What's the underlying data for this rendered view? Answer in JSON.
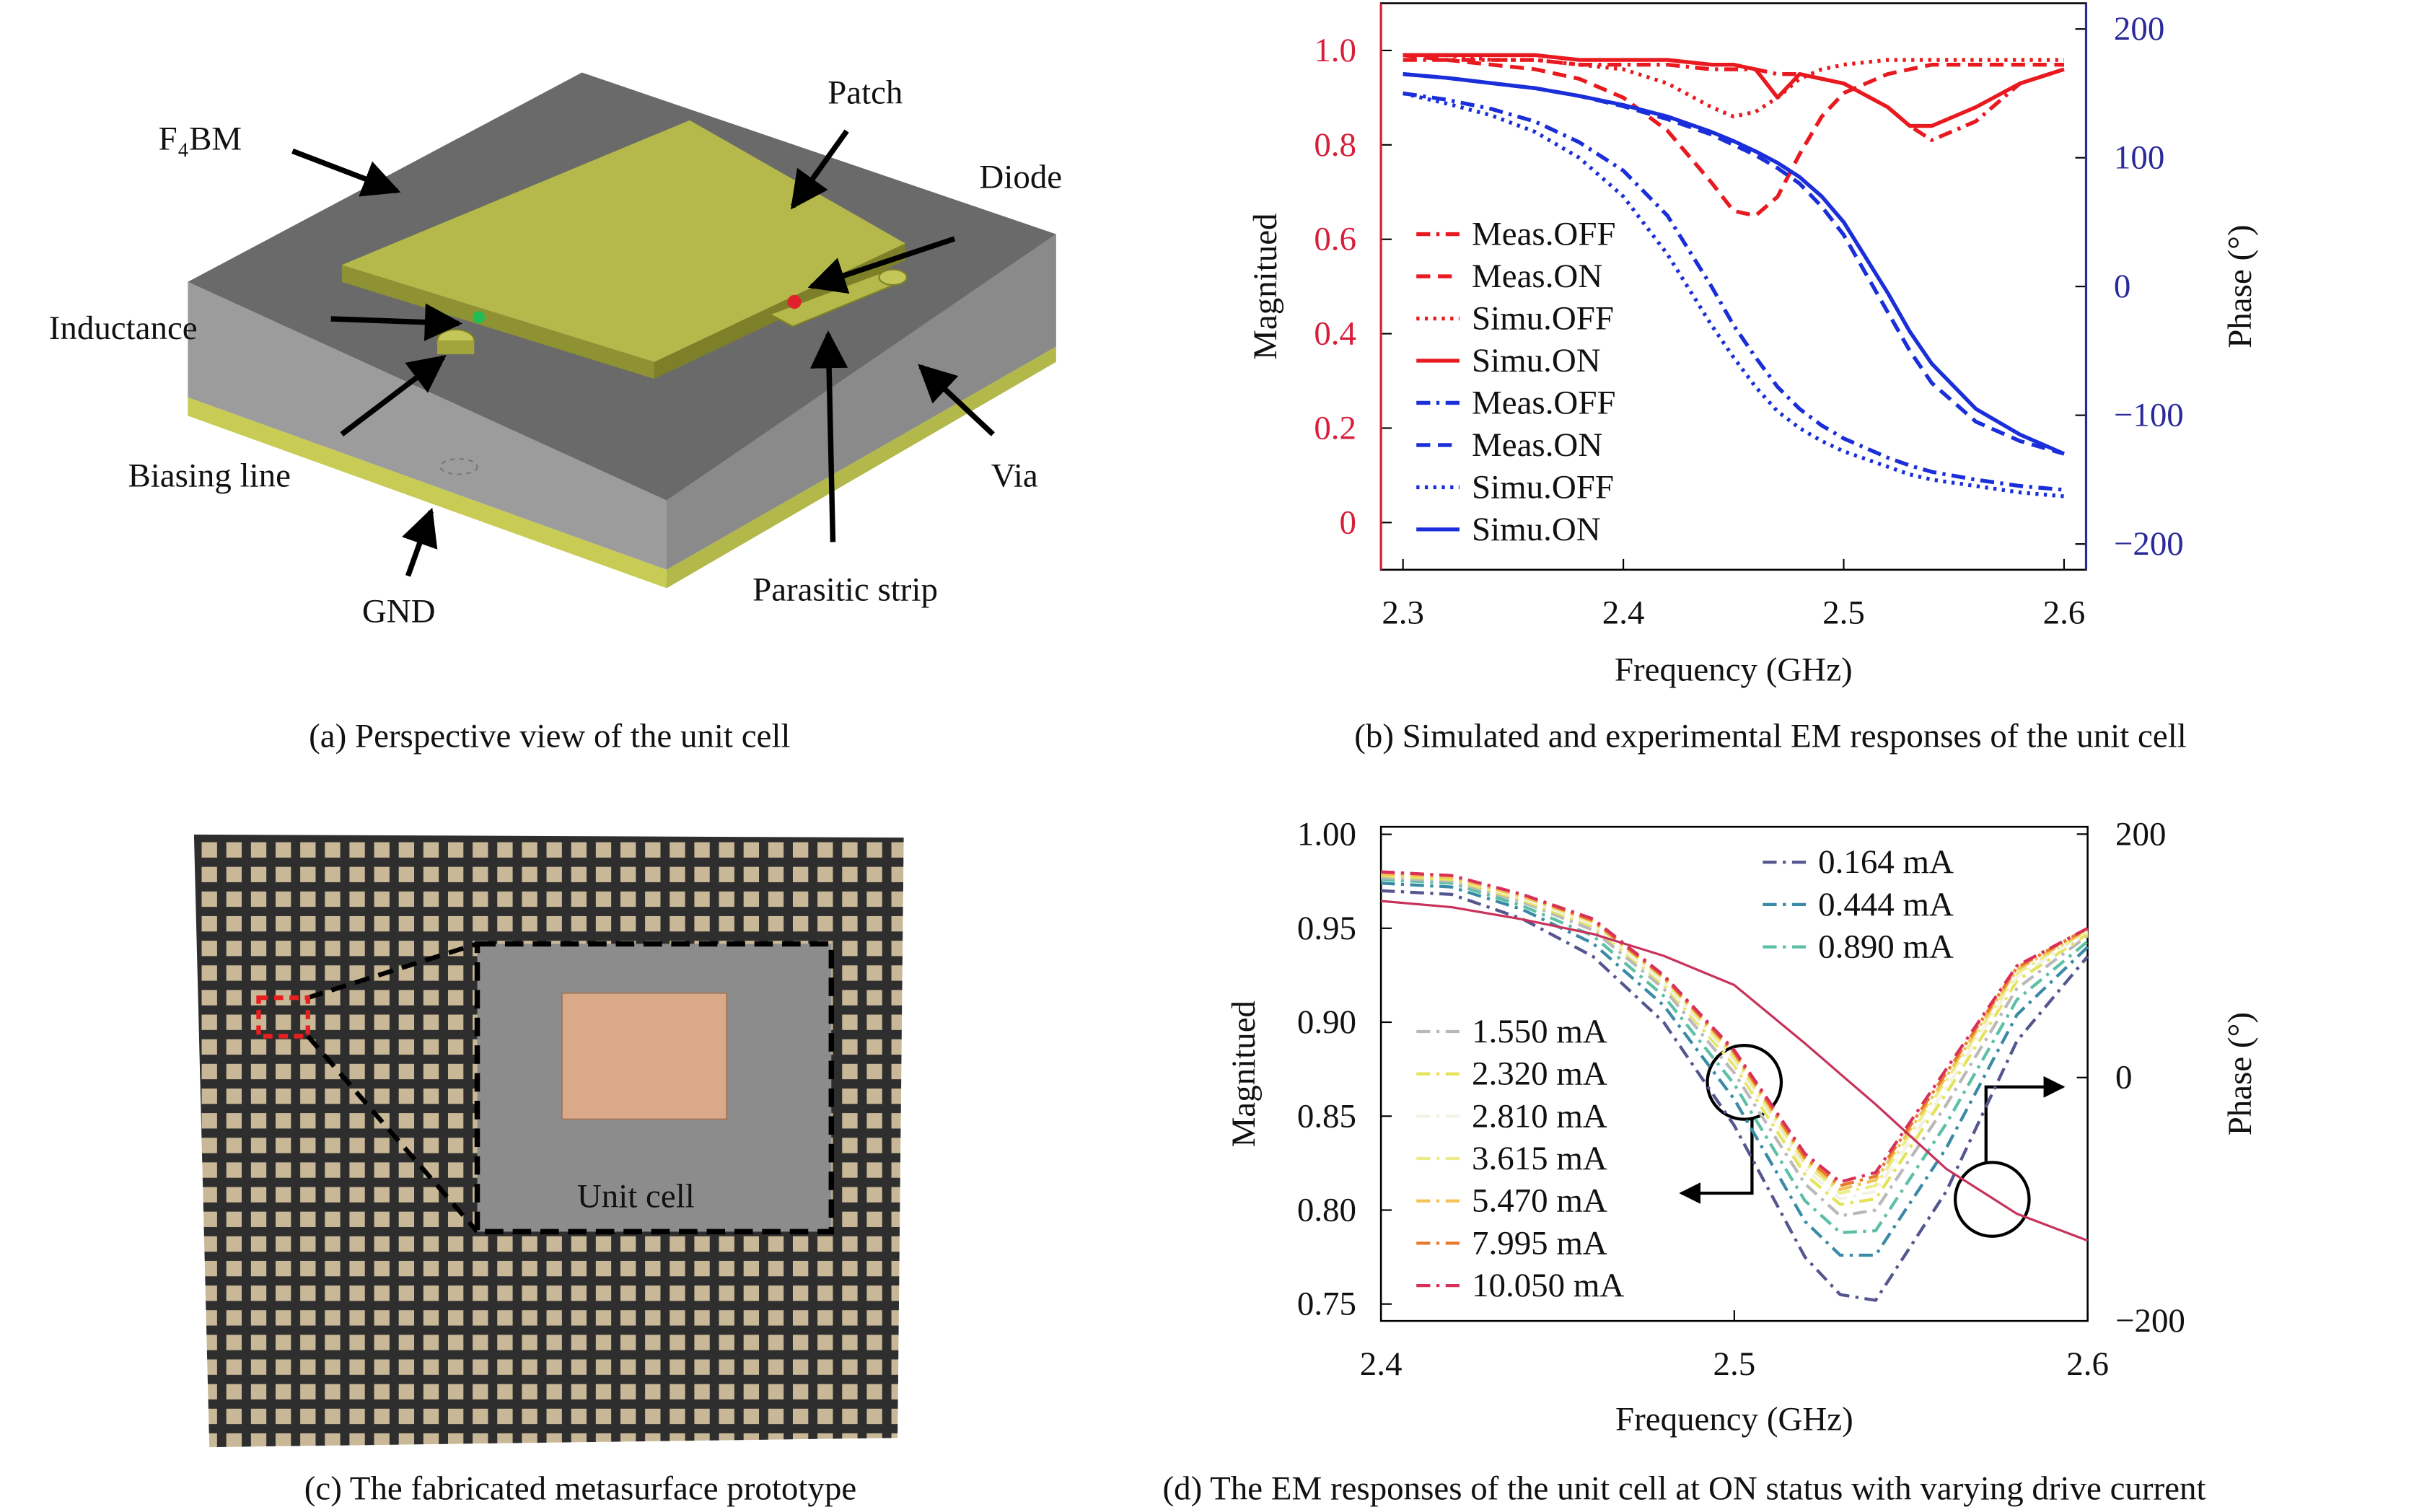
{
  "panels": {
    "a": {
      "caption": "(a) Perspective view of the unit cell",
      "labels": {
        "substrate": "F₄BM",
        "patch": "Patch",
        "diode": "Diode",
        "inductance": "Inductance",
        "biasing": "Biasing line",
        "via": "Via",
        "gnd": "GND",
        "parasitic": "Parasitic strip"
      }
    },
    "c": {
      "caption": "(c) The fabricated metasurface prototype",
      "label": "Unit cell"
    }
  },
  "chart_data": [
    {
      "type": "line",
      "caption": "(b) Simulated and experimental EM responses of the unit cell",
      "xlabel": "Frequency (GHz)",
      "ylabel": "Magnitued",
      "y2label": "Phase (°)",
      "x": [
        2.3,
        2.32,
        2.34,
        2.36,
        2.38,
        2.4,
        2.42,
        2.44,
        2.45,
        2.46,
        2.47,
        2.48,
        2.49,
        2.5,
        2.52,
        2.53,
        2.54,
        2.56,
        2.58,
        2.6
      ],
      "xlim": [
        2.29,
        2.61
      ],
      "xticks": [
        2.3,
        2.4,
        2.5,
        2.6
      ],
      "ylim": [
        -0.1,
        1.1
      ],
      "yticks": [
        0,
        0.2,
        0.4,
        0.6,
        0.8,
        {
          "value": 1,
          "label": "1.0"
        }
      ],
      "y2lim": [
        -220,
        220
      ],
      "y2ticks": [
        {
          "value": -200,
          "label": "−200"
        },
        {
          "value": -100,
          "label": "−100"
        },
        0,
        100,
        200
      ],
      "ytick_color": "#d81e3a",
      "y2tick_color": "#2a2a9a",
      "series": [
        {
          "name": "Meas.OFF",
          "color": "#e8191f",
          "style": "dashdot",
          "values": [
            0.98,
            0.98,
            0.98,
            0.98,
            0.97,
            0.97,
            0.97,
            0.96,
            0.96,
            0.96,
            0.95,
            0.95,
            0.94,
            0.93,
            0.88,
            0.84,
            0.81,
            0.85,
            0.93,
            0.96
          ]
        },
        {
          "name": "Meas.ON",
          "color": "#e8191f",
          "style": "dashed",
          "values": [
            0.99,
            0.98,
            0.97,
            0.96,
            0.94,
            0.9,
            0.83,
            0.72,
            0.66,
            0.65,
            0.69,
            0.78,
            0.86,
            0.91,
            0.95,
            0.96,
            0.97,
            0.97,
            0.97,
            0.97
          ]
        },
        {
          "name": "Simu.OFF",
          "color": "#e8191f",
          "style": "dotted",
          "values": [
            0.99,
            0.99,
            0.98,
            0.98,
            0.97,
            0.96,
            0.93,
            0.88,
            0.86,
            0.87,
            0.9,
            0.94,
            0.96,
            0.97,
            0.98,
            0.98,
            0.98,
            0.98,
            0.98,
            0.98
          ]
        },
        {
          "name": "Simu.ON",
          "color": "#e8191f",
          "style": "solid",
          "values": [
            0.99,
            0.99,
            0.99,
            0.99,
            0.98,
            0.98,
            0.98,
            0.97,
            0.97,
            0.96,
            0.9,
            0.95,
            0.94,
            0.93,
            0.88,
            0.84,
            0.84,
            0.88,
            0.93,
            0.96
          ]
        },
        {
          "name": "Meas.OFF",
          "color": "#1a2ed9",
          "style": "dashdot",
          "axis": "y2",
          "values": [
            150,
            145,
            138,
            128,
            112,
            90,
            55,
            0,
            -30,
            -55,
            -78,
            -95,
            -108,
            -118,
            -133,
            -139,
            -144,
            -150,
            -155,
            -158
          ]
        },
        {
          "name": "Meas.ON",
          "color": "#1a2ed9",
          "style": "dashed",
          "axis": "y2",
          "values": [
            165,
            162,
            158,
            154,
            148,
            140,
            130,
            118,
            110,
            102,
            92,
            80,
            62,
            40,
            -20,
            -50,
            -75,
            -105,
            -120,
            -130
          ]
        },
        {
          "name": "Simu.OFF",
          "color": "#1a2ed9",
          "style": "dotted",
          "axis": "y2",
          "values": [
            150,
            142,
            133,
            120,
            100,
            70,
            25,
            -30,
            -55,
            -78,
            -97,
            -110,
            -120,
            -128,
            -140,
            -146,
            -150,
            -155,
            -160,
            -163
          ]
        },
        {
          "name": "Simu.ON",
          "color": "#1a2ed9",
          "style": "solid",
          "axis": "y2",
          "values": [
            165,
            162,
            158,
            154,
            148,
            141,
            132,
            120,
            113,
            105,
            96,
            85,
            70,
            50,
            -5,
            -35,
            -60,
            -95,
            -115,
            -130
          ]
        }
      ]
    },
    {
      "type": "line",
      "caption": "(d) The EM responses of the unit cell at ON status with varying drive current",
      "xlabel": "Frequency (GHz)",
      "ylabel": "Magnitued",
      "y2label": "Phase (°)",
      "x": [
        2.4,
        2.42,
        2.44,
        2.46,
        2.48,
        2.5,
        2.52,
        2.53,
        2.54,
        2.56,
        2.58,
        2.6
      ],
      "xlim": [
        2.4,
        2.6
      ],
      "xticks": [
        2.4,
        2.5,
        2.6
      ],
      "ylim": [
        0.741,
        1.004
      ],
      "yticks": [
        0.75,
        {
          "value": 0.8,
          "label": "0.80"
        },
        0.85,
        {
          "value": 0.9,
          "label": "0.90"
        },
        0.95,
        {
          "value": 1,
          "label": "1.00"
        }
      ],
      "y2lim": [
        -200,
        206
      ],
      "y2ticks": [
        {
          "value": -200,
          "label": "−200"
        },
        0,
        200
      ],
      "series": [
        {
          "name": "0.164 mA",
          "color": "#55558f",
          "style": "dashdot",
          "values": [
            0.97,
            0.968,
            0.955,
            0.935,
            0.9,
            0.845,
            0.775,
            0.755,
            0.752,
            0.81,
            0.89,
            0.935
          ]
        },
        {
          "name": "0.444 mA",
          "color": "#3a8aa6",
          "style": "dashdot",
          "values": [
            0.974,
            0.972,
            0.96,
            0.942,
            0.909,
            0.859,
            0.794,
            0.776,
            0.776,
            0.833,
            0.904,
            0.94
          ]
        },
        {
          "name": "0.890 mA",
          "color": "#5cbfa6",
          "style": "dashdot",
          "values": [
            0.976,
            0.974,
            0.962,
            0.946,
            0.914,
            0.867,
            0.805,
            0.788,
            0.789,
            0.846,
            0.912,
            0.943
          ]
        },
        {
          "name": "1.550 mA",
          "color": "#b9b9b9",
          "style": "dashdot",
          "values": [
            0.977,
            0.975,
            0.964,
            0.949,
            0.918,
            0.873,
            0.814,
            0.797,
            0.8,
            0.856,
            0.918,
            0.946
          ]
        },
        {
          "name": "2.320 mA",
          "color": "#e4e45a",
          "style": "dashdot",
          "values": [
            0.978,
            0.976,
            0.965,
            0.951,
            0.92,
            0.877,
            0.819,
            0.803,
            0.806,
            0.862,
            0.922,
            0.947
          ]
        },
        {
          "name": "2.810 mA",
          "color": "#f2f2e6",
          "style": "dashdot",
          "values": [
            0.979,
            0.977,
            0.966,
            0.952,
            0.921,
            0.879,
            0.822,
            0.806,
            0.81,
            0.865,
            0.924,
            0.948
          ]
        },
        {
          "name": "3.615 mA",
          "color": "#ecec8a",
          "style": "dashdot",
          "values": [
            0.979,
            0.977,
            0.967,
            0.953,
            0.923,
            0.881,
            0.825,
            0.809,
            0.813,
            0.869,
            0.926,
            0.949
          ]
        },
        {
          "name": "5.470 mA",
          "color": "#f2c255",
          "style": "dashdot",
          "values": [
            0.979,
            0.977,
            0.967,
            0.954,
            0.924,
            0.883,
            0.827,
            0.811,
            0.816,
            0.871,
            0.928,
            0.949
          ]
        },
        {
          "name": "7.995 mA",
          "color": "#e8782a",
          "style": "dashdot",
          "values": [
            0.98,
            0.978,
            0.968,
            0.954,
            0.924,
            0.884,
            0.828,
            0.813,
            0.818,
            0.873,
            0.929,
            0.95
          ]
        },
        {
          "name": "10.050 mA",
          "color": "#d9305a",
          "style": "dashdot",
          "values": [
            0.98,
            0.978,
            0.968,
            0.955,
            0.925,
            0.885,
            0.83,
            0.815,
            0.82,
            0.875,
            0.93,
            0.95
          ]
        },
        {
          "color": "#c8325a",
          "style": "solid",
          "axis": "y2",
          "values": [
            145,
            140,
            130,
            118,
            100,
            76,
            28,
            3,
            -22,
            -75,
            -112,
            -134
          ]
        }
      ]
    }
  ]
}
